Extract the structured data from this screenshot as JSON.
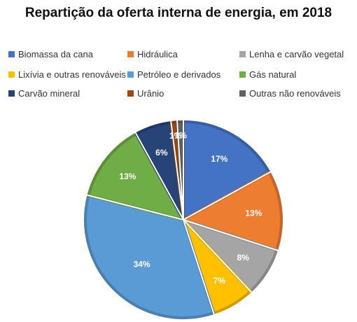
{
  "chart_data": {
    "type": "pie",
    "title": "Repartição da oferta interna de energia, em 2018",
    "legend_position": "top",
    "slices": [
      {
        "name": "Biomassa da cana",
        "value": 17,
        "label": "17%",
        "color": "#4472C4"
      },
      {
        "name": "Hidráulica",
        "value": 13,
        "label": "13%",
        "color": "#ED7D31"
      },
      {
        "name": "Lenha e carvão vegetal",
        "value": 8,
        "label": "8%",
        "color": "#A5A5A5"
      },
      {
        "name": "Lixívia e outras renováveis",
        "value": 7,
        "label": "7%",
        "color": "#FFC000"
      },
      {
        "name": "Petróleo e derivados",
        "value": 34,
        "label": "34%",
        "color": "#5B9BD5"
      },
      {
        "name": "Gás natural",
        "value": 13,
        "label": "13%",
        "color": "#70AD47"
      },
      {
        "name": "Carvão mineral",
        "value": 6,
        "label": "6%",
        "color": "#264478"
      },
      {
        "name": "Urânio",
        "value": 1,
        "label": "1%",
        "color": "#9E480E"
      },
      {
        "name": "Outras não renováveis",
        "value": 1,
        "label": "1%",
        "color": "#636363"
      }
    ]
  }
}
